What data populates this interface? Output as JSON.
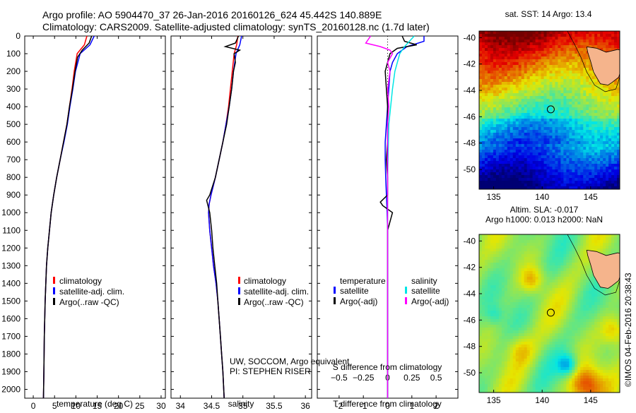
{
  "header": {
    "line1": "Argo profile: AO 5904470_37 26-Jan-2016 20160126_624 45.442S 140.889E",
    "line2": "Climatology: CARS2009. Satellite-adjusted climatology: synTS_20160128.nc (1.7d later)"
  },
  "credit": {
    "line1": "UW, SOCCOM, Argo equivalent",
    "line2": "PI: STEPHEN RISER"
  },
  "watermark": "©IMOS 04-Feb-2016 20:38:43",
  "colors": {
    "climatology": "#ff0000",
    "satellite": "#0000ff",
    "argo": "#000000",
    "salinity_sat": "#00e5e5",
    "salinity_argo": "#ff00ff",
    "land": "#f5b48c"
  },
  "chart_data": [
    {
      "id": "temperature",
      "type": "line",
      "xlabel": "temperature (deg C)",
      "xlim": [
        -2,
        31
      ],
      "xticks": [
        0,
        5,
        10,
        15,
        20,
        25,
        30
      ],
      "ylim": [
        2050,
        0
      ],
      "yticks": [
        0,
        100,
        200,
        300,
        400,
        500,
        600,
        700,
        800,
        900,
        1000,
        1100,
        1200,
        1300,
        1400,
        1500,
        1600,
        1700,
        1800,
        1900,
        2000
      ],
      "legend": {
        "placement": "lower-center",
        "entries": [
          "climatology",
          "satellite-adj. clim.",
          "Argo(..raw -QC)"
        ]
      },
      "series": [
        {
          "name": "climatology",
          "color": "#ff0000",
          "depth": [
            0,
            50,
            100,
            200,
            300,
            400,
            500,
            600,
            700,
            800,
            900,
            1000,
            1100,
            1200,
            1300,
            1500,
            1700,
            1900,
            2050
          ],
          "values": [
            12.6,
            12.0,
            10.3,
            9.6,
            9.1,
            8.5,
            7.9,
            7.1,
            6.3,
            5.5,
            4.8,
            4.2,
            3.8,
            3.4,
            3.1,
            2.8,
            2.6,
            2.5,
            2.4
          ]
        },
        {
          "name": "satellite-adj. clim.",
          "color": "#0000ff",
          "depth": [
            0,
            50,
            100,
            200,
            300,
            400,
            500,
            600,
            700,
            800,
            900,
            1000,
            1100,
            1200,
            1300,
            1500,
            1700,
            1900,
            2050
          ],
          "values": [
            14.3,
            13.3,
            11.0,
            9.9,
            9.3,
            8.6,
            8.0,
            7.2,
            6.3,
            5.5,
            4.8,
            4.2,
            3.8,
            3.4,
            3.1,
            2.8,
            2.6,
            2.5,
            2.4
          ]
        },
        {
          "name": "Argo(..raw -QC)",
          "color": "#000000",
          "depth": [
            0,
            40,
            80,
            120,
            200,
            300,
            400,
            500,
            600,
            700,
            800,
            900,
            1000,
            1100,
            1200,
            1300,
            1500,
            1700,
            1900,
            2050
          ],
          "values": [
            13.7,
            13.1,
            11.5,
            10.4,
            9.8,
            9.2,
            8.5,
            7.9,
            7.1,
            6.3,
            5.5,
            4.8,
            4.2,
            3.8,
            3.4,
            3.1,
            2.8,
            2.6,
            2.5,
            2.4
          ]
        }
      ]
    },
    {
      "id": "salinity",
      "type": "line",
      "xlabel": "salinity",
      "xlim": [
        33.85,
        36.1
      ],
      "xticks": [
        34,
        34.5,
        35,
        35.5,
        36
      ],
      "ylim": [
        2050,
        0
      ],
      "legend": {
        "placement": "lower-center",
        "entries": [
          "climatology",
          "satellite-adj. clim.",
          "Argo(..raw -QC)"
        ]
      },
      "series": [
        {
          "name": "climatology",
          "color": "#ff0000",
          "depth": [
            0,
            50,
            100,
            200,
            300,
            400,
            500,
            600,
            700,
            800,
            900,
            950,
            1000,
            1100,
            1200,
            1300,
            1400,
            1500,
            1600,
            1700,
            1800,
            1900,
            2050
          ],
          "values": [
            34.92,
            34.9,
            34.86,
            34.83,
            34.8,
            34.77,
            34.73,
            34.68,
            34.62,
            34.56,
            34.49,
            34.46,
            34.45,
            34.47,
            34.5,
            34.53,
            34.57,
            34.6,
            34.62,
            34.64,
            34.66,
            34.68,
            34.7
          ]
        },
        {
          "name": "satellite-adj. clim.",
          "color": "#0000ff",
          "depth": [
            0,
            50,
            100,
            200,
            300,
            400,
            500,
            600,
            700,
            800,
            900,
            950,
            1000,
            1100,
            1200,
            1300,
            1400,
            1500,
            1600,
            1700,
            1800,
            1900,
            2050
          ],
          "values": [
            34.98,
            34.95,
            34.89,
            34.85,
            34.82,
            34.78,
            34.73,
            34.68,
            34.62,
            34.56,
            34.49,
            34.46,
            34.45,
            34.47,
            34.5,
            34.53,
            34.57,
            34.6,
            34.62,
            34.64,
            34.66,
            34.68,
            34.7
          ]
        },
        {
          "name": "Argo(..raw -QC)",
          "color": "#000000",
          "depth": [
            0,
            40,
            60,
            80,
            100,
            150,
            200,
            300,
            400,
            500,
            600,
            700,
            800,
            900,
            930,
            1000,
            1100,
            1200,
            1300,
            1400,
            1500,
            1600,
            1700,
            1800,
            1900,
            2050
          ],
          "values": [
            34.93,
            34.88,
            34.72,
            34.95,
            34.86,
            34.88,
            34.85,
            34.82,
            34.78,
            34.74,
            34.68,
            34.62,
            34.56,
            34.47,
            34.42,
            34.47,
            34.5,
            34.52,
            34.55,
            34.58,
            34.6,
            34.62,
            34.64,
            34.66,
            34.68,
            34.7
          ]
        }
      ]
    },
    {
      "id": "difference",
      "type": "line",
      "xlabel": "T difference from climatology",
      "x2label": "S difference from climatology",
      "xlim": [
        -2.9,
        2.9
      ],
      "xticks": [
        -2,
        -1,
        0,
        1,
        2
      ],
      "xticklabels": [
        "-2",
        "-1",
        "0",
        "1",
        "2"
      ],
      "x2ticks": [
        -0.5,
        -0.25,
        0,
        0.25,
        0.5
      ],
      "x2ticklabels": [
        "−0.5",
        "−0.25",
        "0",
        "0.25",
        "0.5"
      ],
      "ylim": [
        2050,
        0
      ],
      "legend": {
        "placement": "lower-center",
        "temperature_title": "temperature",
        "salinity_title": "salinity",
        "entries": [
          "satellite",
          "Argo(-adj)",
          "satellite",
          "Argo(-adj)"
        ]
      },
      "series": [
        {
          "name": "satellite",
          "color": "#0000ff",
          "depth": [
            0,
            30,
            60,
            100,
            150,
            200,
            300,
            400,
            500,
            600,
            700,
            800,
            900,
            1000,
            1100,
            1300,
            1600,
            2050
          ],
          "values": [
            1.5,
            1.5,
            0.8,
            0.4,
            0.2,
            0.1,
            0.05,
            0.0,
            -0.05,
            -0.1,
            -0.1,
            -0.08,
            -0.05,
            -0.02,
            0.0,
            0.0,
            0.0,
            0.0
          ]
        },
        {
          "name": "Argo(-adj)",
          "color": "#000000",
          "depth": [
            0,
            30,
            50,
            70,
            100,
            150,
            200,
            300,
            400,
            500,
            600,
            700,
            800,
            900,
            940,
            960,
            1000,
            1100,
            1300,
            1600,
            2050
          ],
          "values": [
            0.6,
            0.7,
            1.2,
            0.4,
            0.1,
            0.0,
            -0.1,
            -0.05,
            0.0,
            0.0,
            0.0,
            -0.05,
            0.0,
            0.0,
            -0.3,
            -0.2,
            0.2,
            0.0,
            0.0,
            0.0,
            0.0
          ]
        },
        {
          "name": "satellite",
          "color": "#00e5e5",
          "depth": [
            0,
            30,
            60,
            100,
            200,
            300,
            500,
            800,
            1000,
            1300,
            1600,
            2050
          ],
          "values": [
            1.1,
            0.9,
            0.7,
            0.5,
            0.3,
            0.2,
            0.05,
            0.0,
            0.0,
            0.0,
            0.0,
            0.0
          ]
        },
        {
          "name": "Argo(-adj)",
          "color": "#ff00ff",
          "depth": [
            0,
            40,
            60,
            80,
            100,
            150,
            200,
            300,
            400,
            500,
            700,
            900,
            1100,
            1300,
            1600,
            2050
          ],
          "values": [
            -0.7,
            -0.9,
            -0.3,
            0.1,
            0.2,
            0.0,
            0.1,
            0.0,
            0.05,
            0.0,
            0.0,
            0.0,
            0.0,
            0.0,
            0.0,
            0.0
          ]
        }
      ]
    },
    {
      "id": "sst-map",
      "type": "heatmap",
      "title": "sat. SST: 14  Argo: 13.4",
      "xticks": [
        135,
        140,
        145
      ],
      "yticks": [
        -40,
        -42,
        -44,
        -46,
        -48,
        -50
      ],
      "xlim": [
        133.5,
        148
      ],
      "ylim": [
        -51.5,
        -39.5
      ],
      "argo_location": [
        140.889,
        -45.442
      ]
    },
    {
      "id": "sla-map",
      "type": "heatmap",
      "title": "Altim. SLA: -0.017",
      "subtitle": "Argo h1000: 0.013 h2000: NaN",
      "xticks": [
        135,
        140,
        145
      ],
      "yticks": [
        -40,
        -42,
        -44,
        -46,
        -48,
        -50
      ],
      "xlim": [
        133.5,
        148
      ],
      "ylim": [
        -51.5,
        -39.5
      ],
      "argo_location": [
        140.889,
        -45.442
      ]
    }
  ]
}
